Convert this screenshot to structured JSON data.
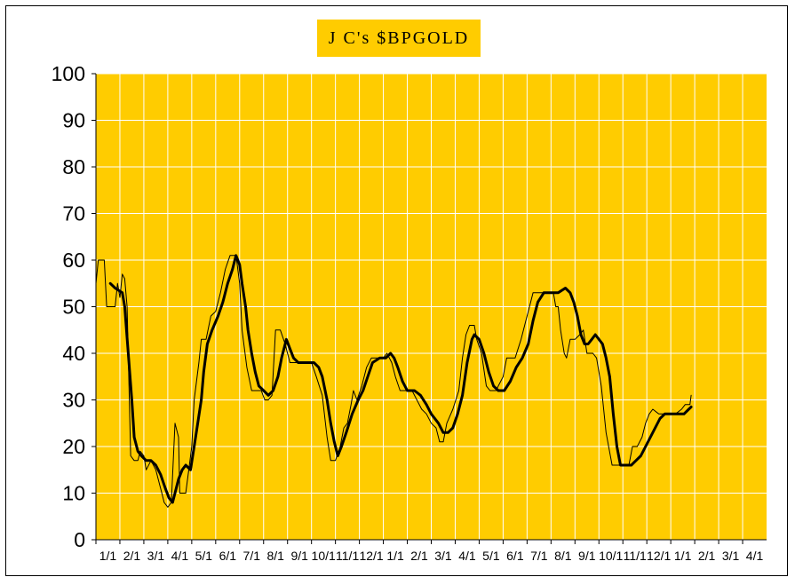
{
  "chart_data": {
    "type": "line",
    "title": "J C's $BPGOLD",
    "xlabel": "",
    "ylabel": "",
    "ylim": [
      0,
      100
    ],
    "yticks": [
      "0",
      "10",
      "20",
      "30",
      "40",
      "50",
      "60",
      "70",
      "80",
      "90",
      "100"
    ],
    "xticks": [
      "1/1",
      "2/1",
      "3/1",
      "4/1",
      "5/1",
      "6/1",
      "7/1",
      "8/1",
      "9/1",
      "10/1",
      "11/1",
      "12/1",
      "1/1",
      "2/1",
      "3/1",
      "4/1",
      "5/1",
      "6/1",
      "7/1",
      "8/1",
      "9/1",
      "10/1",
      "11/1",
      "12/1",
      "1/1",
      "2/1",
      "3/1",
      "4/1"
    ],
    "grid": true,
    "legend": "none",
    "colors": {
      "plot_bg": "#ffcc00",
      "grid": "#ffffff",
      "line": "#000000"
    },
    "series": [
      {
        "style": "thin-step",
        "points": [
          [
            0.0,
            55
          ],
          [
            0.1,
            60
          ],
          [
            0.35,
            60
          ],
          [
            0.45,
            50
          ],
          [
            0.8,
            50
          ],
          [
            0.9,
            55
          ],
          [
            1.0,
            52
          ],
          [
            1.1,
            57
          ],
          [
            1.2,
            56
          ],
          [
            1.3,
            50
          ],
          [
            1.45,
            18
          ],
          [
            1.6,
            17
          ],
          [
            1.75,
            17
          ],
          [
            1.85,
            19
          ],
          [
            2.0,
            18
          ],
          [
            2.1,
            15
          ],
          [
            2.3,
            17
          ],
          [
            2.5,
            15
          ],
          [
            2.6,
            13
          ],
          [
            2.75,
            10
          ],
          [
            2.85,
            8
          ],
          [
            3.0,
            7
          ],
          [
            3.15,
            8
          ],
          [
            3.3,
            25
          ],
          [
            3.45,
            22
          ],
          [
            3.5,
            10
          ],
          [
            3.75,
            10
          ],
          [
            3.9,
            16
          ],
          [
            4.0,
            20
          ],
          [
            4.1,
            30
          ],
          [
            4.3,
            38
          ],
          [
            4.4,
            43
          ],
          [
            4.6,
            43
          ],
          [
            4.8,
            48
          ],
          [
            5.0,
            49
          ],
          [
            5.2,
            53
          ],
          [
            5.4,
            58
          ],
          [
            5.6,
            61
          ],
          [
            5.85,
            61
          ],
          [
            6.0,
            55
          ],
          [
            6.1,
            45
          ],
          [
            6.3,
            37
          ],
          [
            6.5,
            32
          ],
          [
            6.9,
            32
          ],
          [
            7.05,
            30
          ],
          [
            7.2,
            30
          ],
          [
            7.35,
            31
          ],
          [
            7.5,
            45
          ],
          [
            7.7,
            45
          ],
          [
            7.9,
            42
          ],
          [
            8.1,
            38
          ],
          [
            8.5,
            38
          ],
          [
            8.8,
            38
          ],
          [
            9.0,
            38
          ],
          [
            9.2,
            35
          ],
          [
            9.45,
            31
          ],
          [
            9.65,
            22
          ],
          [
            9.8,
            17
          ],
          [
            10.0,
            17
          ],
          [
            10.2,
            20
          ],
          [
            10.35,
            24
          ],
          [
            10.5,
            25
          ],
          [
            10.65,
            29
          ],
          [
            10.75,
            32
          ],
          [
            10.9,
            30
          ],
          [
            11.1,
            33
          ],
          [
            11.3,
            37
          ],
          [
            11.5,
            39
          ],
          [
            11.75,
            39
          ],
          [
            12.0,
            39
          ],
          [
            12.15,
            40
          ],
          [
            12.35,
            38
          ],
          [
            12.5,
            35
          ],
          [
            12.7,
            32
          ],
          [
            12.9,
            32
          ],
          [
            13.2,
            32
          ],
          [
            13.4,
            30
          ],
          [
            13.6,
            28
          ],
          [
            13.8,
            27
          ],
          [
            14.0,
            25
          ],
          [
            14.2,
            24
          ],
          [
            14.35,
            21
          ],
          [
            14.5,
            21
          ],
          [
            14.65,
            25
          ],
          [
            14.9,
            28
          ],
          [
            15.15,
            32
          ],
          [
            15.3,
            39
          ],
          [
            15.45,
            44
          ],
          [
            15.6,
            46
          ],
          [
            15.8,
            46
          ],
          [
            15.9,
            43
          ],
          [
            16.1,
            40
          ],
          [
            16.3,
            33
          ],
          [
            16.45,
            32
          ],
          [
            16.7,
            32
          ],
          [
            17.0,
            35
          ],
          [
            17.15,
            39
          ],
          [
            17.5,
            39
          ],
          [
            17.75,
            43
          ],
          [
            17.95,
            47
          ],
          [
            18.1,
            50
          ],
          [
            18.25,
            53
          ],
          [
            18.6,
            53
          ],
          [
            18.95,
            53
          ],
          [
            19.1,
            53
          ],
          [
            19.2,
            50
          ],
          [
            19.3,
            50
          ],
          [
            19.4,
            45
          ],
          [
            19.55,
            40
          ],
          [
            19.65,
            39
          ],
          [
            19.8,
            43
          ],
          [
            20.0,
            43
          ],
          [
            20.2,
            44
          ],
          [
            20.35,
            45
          ],
          [
            20.5,
            40
          ],
          [
            20.75,
            40
          ],
          [
            20.9,
            39
          ],
          [
            21.1,
            33
          ],
          [
            21.3,
            23
          ],
          [
            21.55,
            16
          ],
          [
            21.8,
            16
          ],
          [
            22.0,
            16
          ],
          [
            22.25,
            16
          ],
          [
            22.4,
            20
          ],
          [
            22.6,
            20
          ],
          [
            22.8,
            22
          ],
          [
            22.95,
            25
          ],
          [
            23.1,
            27
          ],
          [
            23.25,
            28
          ],
          [
            23.5,
            27
          ],
          [
            23.8,
            27
          ],
          [
            24.0,
            27
          ],
          [
            24.2,
            27
          ],
          [
            24.45,
            28
          ],
          [
            24.6,
            29
          ],
          [
            24.8,
            29
          ],
          [
            24.85,
            31
          ]
        ]
      },
      {
        "style": "thick-smooth",
        "points": [
          [
            0.6,
            55
          ],
          [
            0.8,
            54
          ],
          [
            1.1,
            53
          ],
          [
            1.2,
            50
          ],
          [
            1.35,
            40
          ],
          [
            1.5,
            30
          ],
          [
            1.6,
            22
          ],
          [
            1.75,
            19
          ],
          [
            1.9,
            18
          ],
          [
            2.1,
            17
          ],
          [
            2.3,
            17
          ],
          [
            2.5,
            16
          ],
          [
            2.7,
            14
          ],
          [
            2.9,
            11
          ],
          [
            3.05,
            9
          ],
          [
            3.2,
            8
          ],
          [
            3.3,
            10
          ],
          [
            3.45,
            13
          ],
          [
            3.6,
            15
          ],
          [
            3.75,
            16
          ],
          [
            3.95,
            15
          ],
          [
            4.1,
            20
          ],
          [
            4.25,
            25
          ],
          [
            4.4,
            30
          ],
          [
            4.5,
            36
          ],
          [
            4.65,
            42
          ],
          [
            4.85,
            45
          ],
          [
            5.1,
            48
          ],
          [
            5.3,
            51
          ],
          [
            5.5,
            55
          ],
          [
            5.7,
            58
          ],
          [
            5.85,
            61
          ],
          [
            6.0,
            59
          ],
          [
            6.1,
            55
          ],
          [
            6.25,
            50
          ],
          [
            6.35,
            45
          ],
          [
            6.5,
            40
          ],
          [
            6.65,
            36
          ],
          [
            6.8,
            33
          ],
          [
            7.0,
            32
          ],
          [
            7.2,
            31
          ],
          [
            7.4,
            32
          ],
          [
            7.6,
            35
          ],
          [
            7.75,
            39
          ],
          [
            7.95,
            43
          ],
          [
            8.1,
            41
          ],
          [
            8.25,
            39
          ],
          [
            8.45,
            38
          ],
          [
            8.8,
            38
          ],
          [
            9.1,
            38
          ],
          [
            9.3,
            37
          ],
          [
            9.45,
            35
          ],
          [
            9.65,
            30
          ],
          [
            9.8,
            25
          ],
          [
            9.95,
            21
          ],
          [
            10.1,
            18
          ],
          [
            10.25,
            20
          ],
          [
            10.45,
            23
          ],
          [
            10.7,
            27
          ],
          [
            10.95,
            30
          ],
          [
            11.15,
            32
          ],
          [
            11.35,
            35
          ],
          [
            11.55,
            38
          ],
          [
            11.85,
            39
          ],
          [
            12.1,
            39
          ],
          [
            12.3,
            40
          ],
          [
            12.45,
            39
          ],
          [
            12.6,
            37
          ],
          [
            12.8,
            34
          ],
          [
            13.0,
            32
          ],
          [
            13.3,
            32
          ],
          [
            13.55,
            31
          ],
          [
            13.8,
            29
          ],
          [
            14.0,
            27
          ],
          [
            14.3,
            25
          ],
          [
            14.5,
            23
          ],
          [
            14.7,
            23
          ],
          [
            14.9,
            24
          ],
          [
            15.1,
            27
          ],
          [
            15.3,
            31
          ],
          [
            15.5,
            38
          ],
          [
            15.7,
            43
          ],
          [
            15.8,
            44
          ],
          [
            16.0,
            43
          ],
          [
            16.2,
            40
          ],
          [
            16.4,
            36
          ],
          [
            16.6,
            33
          ],
          [
            16.8,
            32
          ],
          [
            17.05,
            32
          ],
          [
            17.3,
            34
          ],
          [
            17.55,
            37
          ],
          [
            17.8,
            39
          ],
          [
            18.05,
            42
          ],
          [
            18.25,
            47
          ],
          [
            18.45,
            51
          ],
          [
            18.7,
            53
          ],
          [
            19.0,
            53
          ],
          [
            19.3,
            53
          ],
          [
            19.6,
            54
          ],
          [
            19.8,
            53
          ],
          [
            19.95,
            51
          ],
          [
            20.1,
            48
          ],
          [
            20.25,
            44
          ],
          [
            20.4,
            42
          ],
          [
            20.55,
            42
          ],
          [
            20.7,
            43
          ],
          [
            20.85,
            44
          ],
          [
            21.0,
            43
          ],
          [
            21.15,
            42
          ],
          [
            21.3,
            39
          ],
          [
            21.45,
            35
          ],
          [
            21.6,
            27
          ],
          [
            21.75,
            20
          ],
          [
            21.9,
            16
          ],
          [
            22.1,
            16
          ],
          [
            22.35,
            16
          ],
          [
            22.55,
            17
          ],
          [
            22.75,
            18
          ],
          [
            22.95,
            20
          ],
          [
            23.15,
            22
          ],
          [
            23.35,
            24
          ],
          [
            23.55,
            26
          ],
          [
            23.75,
            27
          ],
          [
            24.0,
            27
          ],
          [
            24.3,
            27
          ],
          [
            24.55,
            27
          ],
          [
            24.75,
            28
          ],
          [
            24.85,
            28.5
          ]
        ]
      }
    ]
  }
}
